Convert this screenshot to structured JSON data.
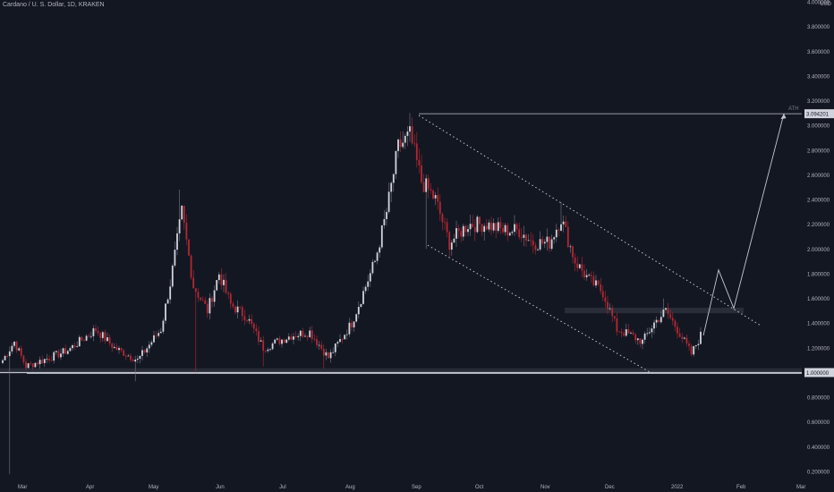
{
  "header": {
    "symbol": "Cardano / U. S. Dollar, 1D, KRAKEN",
    "currency": "USD"
  },
  "chart_data": {
    "type": "candlestick",
    "title": "Cardano / U. S. Dollar, 1D, KRAKEN",
    "ylim": [
      0.2,
      4.0
    ],
    "y_ticks": [
      "4.000000",
      "3.800000",
      "3.600000",
      "3.400000",
      "3.200000",
      "3.000000",
      "2.800000",
      "2.600000",
      "2.400000",
      "2.200000",
      "2.000000",
      "1.800000",
      "1.600000",
      "1.400000",
      "1.200000",
      "1.000000",
      "0.800000",
      "0.600000",
      "0.400000",
      "0.200000"
    ],
    "x_ticks": [
      "Mar",
      "Apr",
      "May",
      "Jun",
      "Jul",
      "Aug",
      "Sep",
      "Oct",
      "Nov",
      "Dec",
      "2022",
      "Feb",
      "Mar"
    ],
    "price_labels": [
      {
        "label": "3.094201",
        "value": 3.094201
      },
      {
        "label": "1.000000",
        "value": 1.0
      }
    ],
    "annotations": [
      {
        "text": "ATH"
      }
    ],
    "colors": {
      "background": "#131722",
      "up": "#d1d4dc",
      "down": "#b22833",
      "wick": "#787b86",
      "axis_text": "#b2b5be",
      "drawing": "#c3c6ce"
    },
    "anchors": [
      {
        "x": 0,
        "y": 1.1
      },
      {
        "x": 5,
        "y": 1.25
      },
      {
        "x": 10,
        "y": 1.05
      },
      {
        "x": 20,
        "y": 1.12
      },
      {
        "x": 28,
        "y": 1.18
      },
      {
        "x": 40,
        "y": 1.35
      },
      {
        "x": 48,
        "y": 1.2
      },
      {
        "x": 58,
        "y": 1.1
      },
      {
        "x": 68,
        "y": 1.35
      },
      {
        "x": 72,
        "y": 1.72
      },
      {
        "x": 77,
        "y": 2.3
      },
      {
        "x": 82,
        "y": 1.7
      },
      {
        "x": 88,
        "y": 1.5
      },
      {
        "x": 93,
        "y": 1.8
      },
      {
        "x": 98,
        "y": 1.55
      },
      {
        "x": 105,
        "y": 1.45
      },
      {
        "x": 112,
        "y": 1.2
      },
      {
        "x": 118,
        "y": 1.25
      },
      {
        "x": 124,
        "y": 1.3
      },
      {
        "x": 132,
        "y": 1.33
      },
      {
        "x": 140,
        "y": 1.12
      },
      {
        "x": 150,
        "y": 1.4
      },
      {
        "x": 160,
        "y": 1.9
      },
      {
        "x": 165,
        "y": 2.3
      },
      {
        "x": 170,
        "y": 2.82
      },
      {
        "x": 175,
        "y": 2.92
      },
      {
        "x": 180,
        "y": 2.55
      },
      {
        "x": 186,
        "y": 2.4
      },
      {
        "x": 192,
        "y": 2.05
      },
      {
        "x": 200,
        "y": 2.2
      },
      {
        "x": 208,
        "y": 2.2
      },
      {
        "x": 215,
        "y": 2.15
      },
      {
        "x": 222,
        "y": 2.15
      },
      {
        "x": 228,
        "y": 2.05
      },
      {
        "x": 235,
        "y": 2.05
      },
      {
        "x": 240,
        "y": 2.25
      },
      {
        "x": 246,
        "y": 1.9
      },
      {
        "x": 252,
        "y": 1.75
      },
      {
        "x": 258,
        "y": 1.65
      },
      {
        "x": 264,
        "y": 1.35
      },
      {
        "x": 270,
        "y": 1.3
      },
      {
        "x": 275,
        "y": 1.25
      },
      {
        "x": 280,
        "y": 1.4
      },
      {
        "x": 285,
        "y": 1.5
      },
      {
        "x": 290,
        "y": 1.35
      },
      {
        "x": 296,
        "y": 1.15
      },
      {
        "x": 300,
        "y": 1.3
      }
    ],
    "spikes": [
      {
        "x": 3,
        "lo": 0.18
      },
      {
        "x": 57,
        "lo": 0.93
      },
      {
        "x": 76,
        "hi": 2.48
      },
      {
        "x": 83,
        "lo": 1.0
      },
      {
        "x": 112,
        "lo": 1.05
      },
      {
        "x": 138,
        "lo": 1.03
      },
      {
        "x": 175,
        "hi": 3.1
      },
      {
        "x": 182,
        "lo": 2.0
      },
      {
        "x": 240,
        "hi": 2.38
      },
      {
        "x": 284,
        "hi": 1.6
      }
    ]
  }
}
